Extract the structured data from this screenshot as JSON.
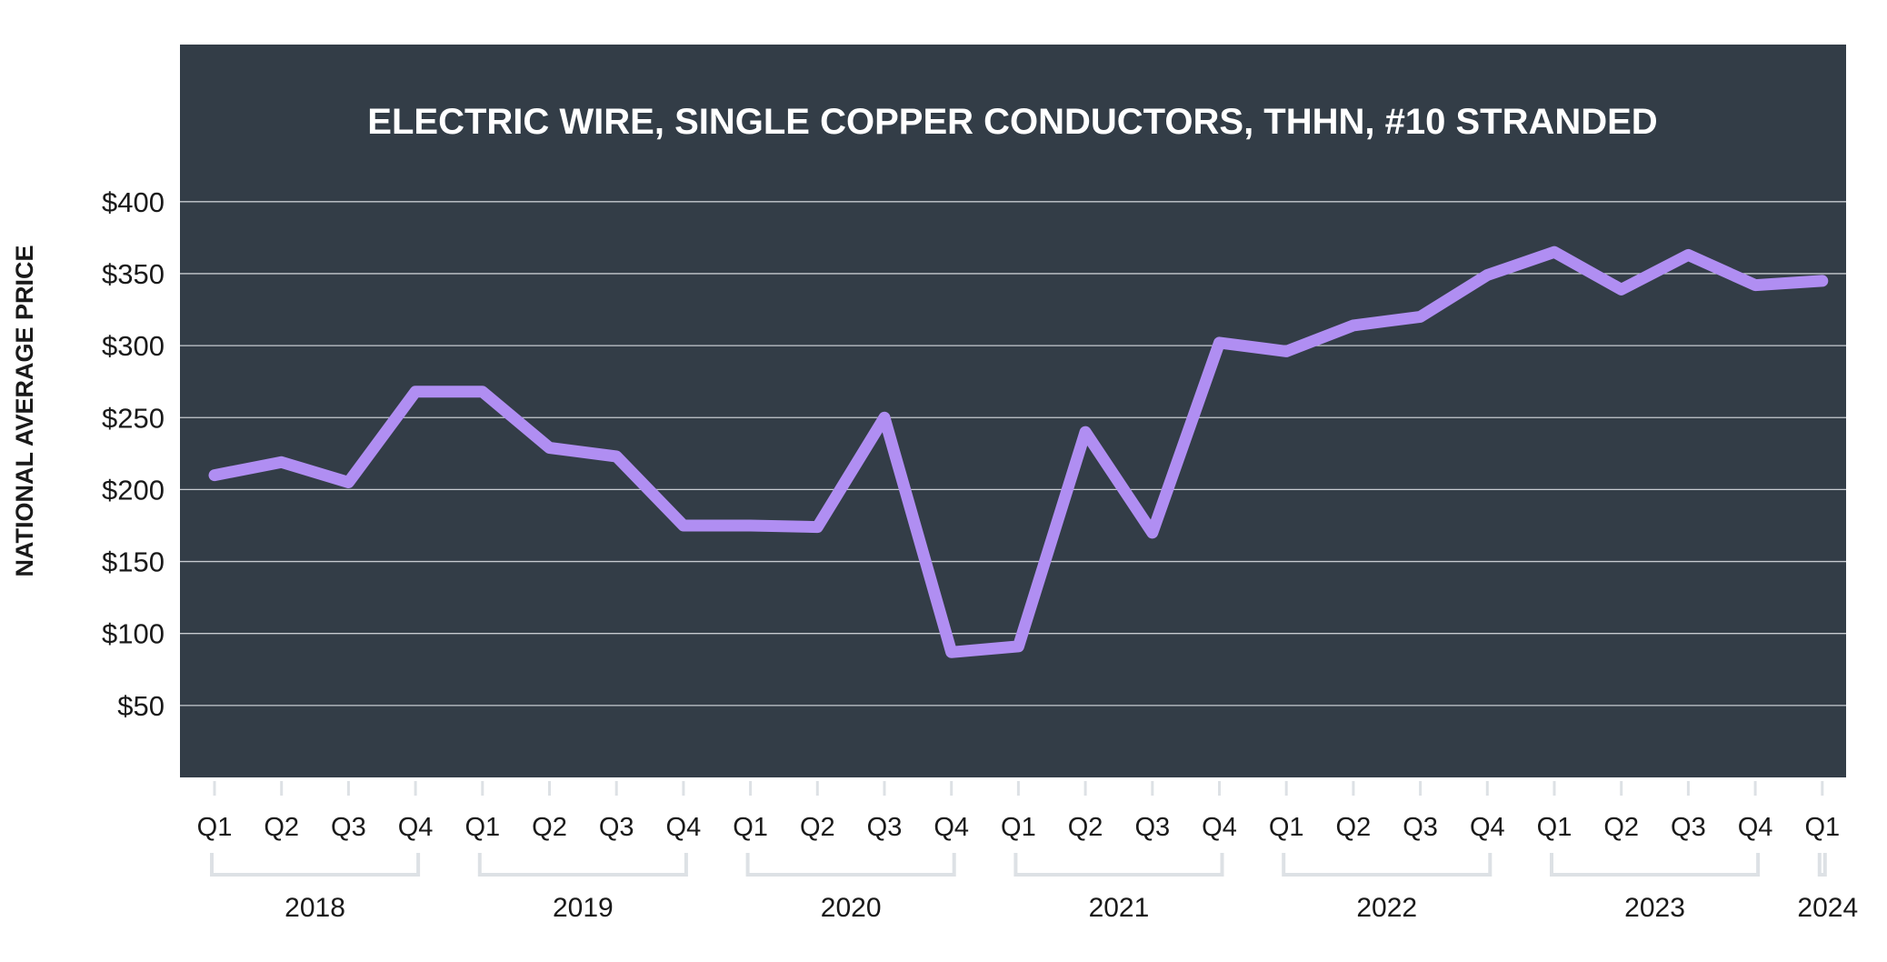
{
  "chart_data": {
    "type": "line",
    "title": "ELECTRIC WIRE, SINGLE COPPER CONDUCTORS, THHN, #10 STRANDED",
    "xlabel": "",
    "ylabel": "NATIONAL AVERAGE PRICE",
    "ylim": [
      0,
      440
    ],
    "y_ticks": [
      50,
      100,
      150,
      200,
      250,
      300,
      350,
      400
    ],
    "y_tick_labels": [
      "$50",
      "$100",
      "$150",
      "$200",
      "$250",
      "$300",
      "$350",
      "$400"
    ],
    "grid": true,
    "categories": [
      "Q1",
      "Q2",
      "Q3",
      "Q4",
      "Q1",
      "Q2",
      "Q3",
      "Q4",
      "Q1",
      "Q2",
      "Q3",
      "Q4",
      "Q1",
      "Q2",
      "Q3",
      "Q4",
      "Q1",
      "Q2",
      "Q3",
      "Q4",
      "Q1",
      "Q2",
      "Q3",
      "Q4",
      "Q1"
    ],
    "years": [
      {
        "label": "2018",
        "quarters": 4
      },
      {
        "label": "2019",
        "quarters": 4
      },
      {
        "label": "2020",
        "quarters": 4
      },
      {
        "label": "2021",
        "quarters": 4
      },
      {
        "label": "2022",
        "quarters": 4
      },
      {
        "label": "2023",
        "quarters": 4
      },
      {
        "label": "2024",
        "quarters": 1
      }
    ],
    "series": [
      {
        "values": [
          210,
          219,
          205,
          268,
          268,
          229,
          223,
          175,
          175,
          174,
          250,
          87,
          91,
          240,
          170,
          302,
          296,
          314,
          320,
          349,
          365,
          339,
          363,
          342,
          345
        ]
      }
    ],
    "colors": {
      "plot_background": "#333d47",
      "line": "#b08ef2",
      "gridline": "#c7cbd0",
      "title_text": "#ffffff",
      "axis_text": "#1a1a1a",
      "bracket": "#dde1e5"
    }
  }
}
